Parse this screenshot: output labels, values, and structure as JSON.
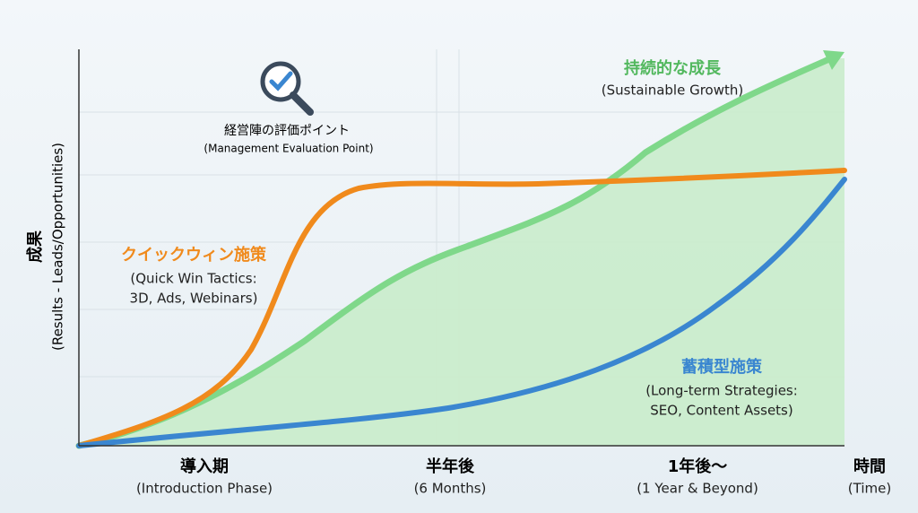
{
  "y_axis": {
    "title": "成果",
    "subtitle": "(Results - Leads/Opportunities)"
  },
  "x_axis": {
    "labels": [
      {
        "title": "導入期",
        "subtitle": "(Introduction Phase)"
      },
      {
        "title": "半年後",
        "subtitle": "(6 Months)"
      },
      {
        "title": "1年後～",
        "subtitle": "(1 Year & Beyond)"
      },
      {
        "title": "時間",
        "subtitle": "(Time)"
      }
    ]
  },
  "callouts": {
    "evaluation": {
      "title": "経営陣の評価ポイント",
      "subtitle": "(Management Evaluation Point)"
    },
    "quick_win": {
      "title": "クイックウィン施策",
      "lines": [
        "(Quick Win Tactics:",
        "3D, Ads, Webinars)"
      ]
    },
    "sustainable": {
      "title": "持続的な成長",
      "subtitle": "(Sustainable Growth)"
    },
    "long_term": {
      "title": "蓄積型施策",
      "lines": [
        "(Long-term Strategies:",
        "SEO, Content Assets)"
      ]
    }
  }
}
